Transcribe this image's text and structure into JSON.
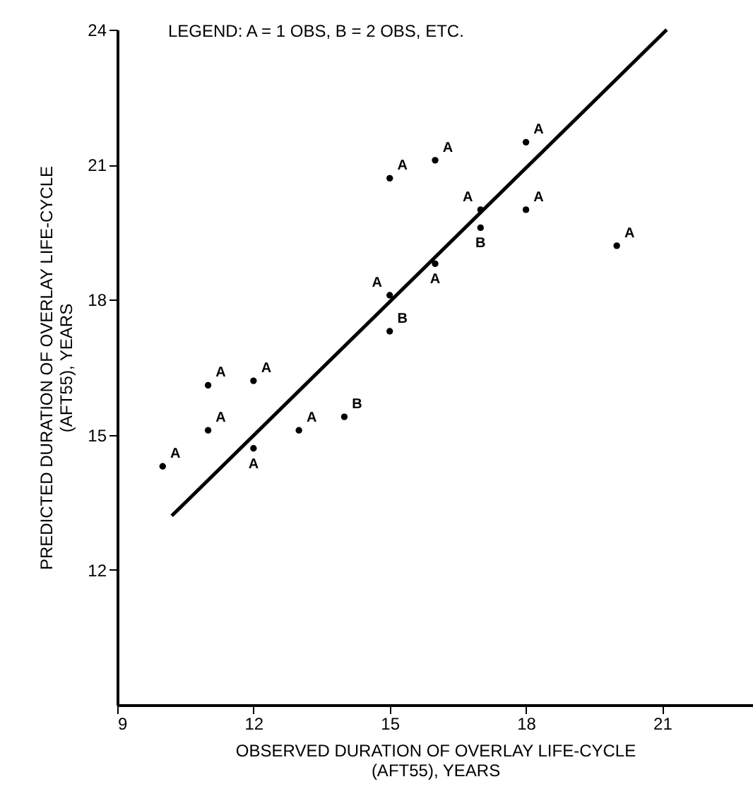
{
  "chart_data": {
    "type": "scatter",
    "xlabel": "OBSERVED DURATION OF OVERLAY LIFE-CYCLE\n(AFT55), YEARS",
    "ylabel": "PREDICTED DURATION OF OVERLAY LIFE-CYCLE\n(AFT55), YEARS",
    "annotations": [
      "LEGEND: A = 1 OBS, B = 2 OBS, ETC."
    ],
    "xlim": [
      9,
      23
    ],
    "xticks": [
      9,
      12,
      15,
      18,
      21
    ],
    "ylim": [
      9,
      24
    ],
    "yticks": [
      12,
      15,
      18,
      21,
      24
    ],
    "grid": false,
    "series": [
      {
        "type": "scatter",
        "color": "#000000",
        "x": [
          15,
          16,
          18,
          17,
          17,
          18,
          20,
          16,
          15,
          15,
          11,
          12,
          14,
          11,
          13,
          12,
          10
        ],
        "values": [
          20.7,
          21.1,
          21.5,
          20.0,
          19.6,
          20.0,
          19.2,
          18.8,
          18.1,
          17.3,
          16.1,
          16.2,
          15.4,
          15.1,
          15.1,
          14.7,
          14.3
        ],
        "value_labels": [
          "A",
          "A",
          "A",
          "A",
          "B",
          "A",
          "A",
          "A",
          "A",
          "B",
          "A",
          "A",
          "B",
          "A",
          "A",
          "A",
          "A"
        ]
      },
      {
        "type": "line",
        "color": "#000000",
        "x": [
          10.2,
          21.1
        ],
        "values": [
          13.2,
          24.0
        ],
        "line_style": "solid"
      }
    ]
  }
}
